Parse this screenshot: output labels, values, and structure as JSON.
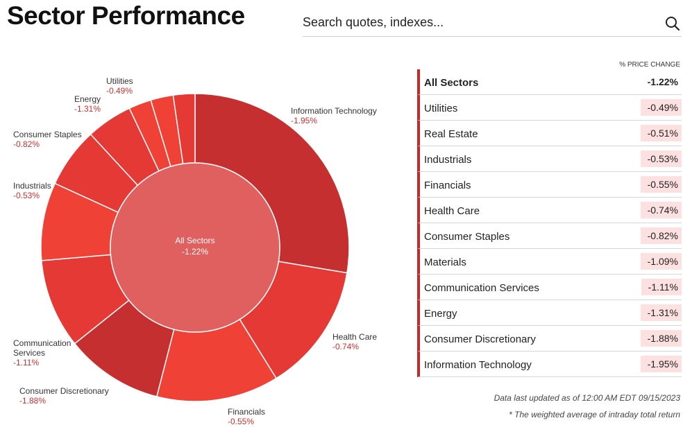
{
  "page": {
    "title": "Sector Performance"
  },
  "search": {
    "placeholder": "Search quotes, indexes..."
  },
  "table": {
    "column_header": "% PRICE CHANGE",
    "rows": [
      {
        "name": "All Sectors",
        "value": "-1.22%"
      },
      {
        "name": "Utilities",
        "value": "-0.49%"
      },
      {
        "name": "Real Estate",
        "value": "-0.51%"
      },
      {
        "name": "Industrials",
        "value": "-0.53%"
      },
      {
        "name": "Financials",
        "value": "-0.55%"
      },
      {
        "name": "Health Care",
        "value": "-0.74%"
      },
      {
        "name": "Consumer Staples",
        "value": "-0.82%"
      },
      {
        "name": "Materials",
        "value": "-1.09%"
      },
      {
        "name": "Communication Services",
        "value": "-1.11%"
      },
      {
        "name": "Energy",
        "value": "-1.31%"
      },
      {
        "name": "Consumer Discretionary",
        "value": "-1.88%"
      },
      {
        "name": "Information Technology",
        "value": "-1.95%"
      }
    ]
  },
  "footer": {
    "updated": "Data last updated as of 12:00 AM EDT 09/15/2023",
    "note": "* The weighted average of intraday total return"
  },
  "colors": {
    "dark_red": "#c62f2f",
    "mid_red": "#e53935",
    "bright_red": "#ef4136",
    "center": "#e0605f",
    "accent": "#c62828",
    "negative_text": "#d32f2f"
  },
  "chart_data": {
    "type": "pie",
    "center": {
      "label": "All Sectors",
      "value": "-1.22%"
    },
    "order": "clockwise from top",
    "slices": [
      {
        "name": "Information Technology",
        "label": "Information Technology",
        "value": -1.95,
        "display": "-1.95%",
        "weight": 28.0,
        "shade": "dark"
      },
      {
        "name": "Health Care",
        "label": "Health Care",
        "value": -0.74,
        "display": "-0.74%",
        "weight": 13.7,
        "shade": "mid"
      },
      {
        "name": "Financials",
        "label": "Financials",
        "value": -0.55,
        "display": "-0.55%",
        "weight": 13.0,
        "shade": "bright"
      },
      {
        "name": "Consumer Discretionary",
        "label": "Consumer Discretionary",
        "value": -1.88,
        "display": "-1.88%",
        "weight": 10.4,
        "shade": "dark"
      },
      {
        "name": "Communication Services",
        "label": "Communication\nServices",
        "value": -1.11,
        "display": "-1.11%",
        "weight": 9.5,
        "shade": "mid"
      },
      {
        "name": "Industrials",
        "label": "Industrials",
        "value": -0.53,
        "display": "-0.53%",
        "weight": 8.3,
        "shade": "bright"
      },
      {
        "name": "Consumer Staples",
        "label": "Consumer Staples",
        "value": -0.82,
        "display": "-0.82%",
        "weight": 6.4,
        "shade": "mid"
      },
      {
        "name": "Energy",
        "label": "Energy",
        "value": -1.31,
        "display": "-1.31%",
        "weight": 4.9,
        "shade": "mid"
      },
      {
        "name": "Utilities",
        "label": "Utilities",
        "value": -0.49,
        "display": "-0.49%",
        "weight": 2.4,
        "shade": "bright"
      },
      {
        "name": "Real Estate",
        "label": "",
        "value": -0.51,
        "display": "",
        "weight": 2.4,
        "shade": "bright"
      },
      {
        "name": "Materials",
        "label": "",
        "value": -1.09,
        "display": "",
        "weight": 2.3,
        "shade": "mid"
      }
    ]
  }
}
